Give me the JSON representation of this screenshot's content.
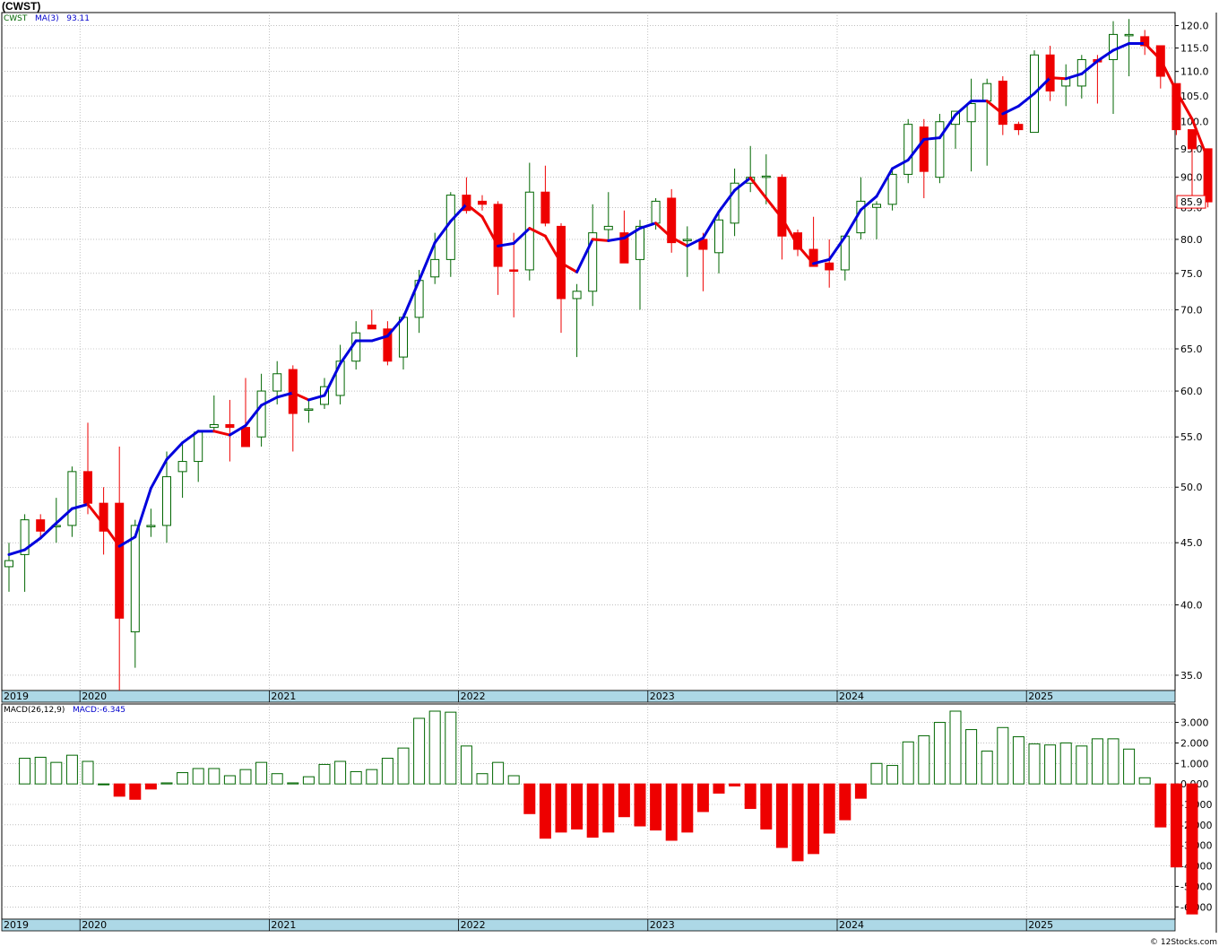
{
  "header": {
    "title": "(CWST)",
    "footer": "© 12Stocks.com"
  },
  "colors": {
    "up": "#006600",
    "down": "#ee0000",
    "ma_rising": "#0000dd",
    "ma_falling": "#ee0000",
    "axis_band": "#add8e6",
    "grid": "#999999",
    "last_box": "#ee0000"
  },
  "chart_data": [
    {
      "type": "candlestick",
      "symbol": "CWST",
      "interval": "monthly",
      "y_scale": "log",
      "ylim": [
        34,
        123
      ],
      "y_ticks": [
        35,
        40,
        45,
        50,
        55,
        60,
        65,
        70,
        75,
        80,
        85,
        90,
        95,
        100,
        105,
        110,
        115,
        120
      ],
      "year_labels": [
        "2019",
        "2020",
        "2021",
        "2022",
        "2023",
        "2024",
        "2025"
      ],
      "last_value": "85.9",
      "legend": {
        "symbol": "CWST",
        "ma_label": "MA(3)",
        "ma_value": "93.11"
      },
      "candles": [
        {
          "date": "2019-08",
          "o": 43.0,
          "h": 45.0,
          "l": 41.0,
          "c": 43.5
        },
        {
          "date": "2019-09",
          "o": 44.0,
          "h": 47.5,
          "l": 41.0,
          "c": 47.0
        },
        {
          "date": "2019-10",
          "o": 47.0,
          "h": 47.5,
          "l": 45.5,
          "c": 46.0
        },
        {
          "date": "2019-11",
          "o": 46.5,
          "h": 49.0,
          "l": 45.0,
          "c": 46.5
        },
        {
          "date": "2019-12",
          "o": 46.5,
          "h": 52.0,
          "l": 45.5,
          "c": 51.5
        },
        {
          "date": "2020-01",
          "o": 51.5,
          "h": 56.5,
          "l": 47.5,
          "c": 48.5
        },
        {
          "date": "2020-02",
          "o": 48.5,
          "h": 50.0,
          "l": 44.0,
          "c": 46.0
        },
        {
          "date": "2020-03",
          "o": 48.5,
          "h": 54.0,
          "l": 34.0,
          "c": 39.0
        },
        {
          "date": "2020-04",
          "o": 38.0,
          "h": 47.0,
          "l": 35.5,
          "c": 46.5
        },
        {
          "date": "2020-05",
          "o": 46.5,
          "h": 48.0,
          "l": 45.5,
          "c": 46.5
        },
        {
          "date": "2020-06",
          "o": 46.5,
          "h": 53.5,
          "l": 45.0,
          "c": 51.0
        },
        {
          "date": "2020-07",
          "o": 51.5,
          "h": 54.5,
          "l": 49.0,
          "c": 52.5
        },
        {
          "date": "2020-08",
          "o": 52.5,
          "h": 55.5,
          "l": 50.5,
          "c": 55.5
        },
        {
          "date": "2020-09",
          "o": 56.0,
          "h": 59.5,
          "l": 55.5,
          "c": 56.3
        },
        {
          "date": "2020-10",
          "o": 56.3,
          "h": 59.0,
          "l": 52.5,
          "c": 56.0
        },
        {
          "date": "2020-11",
          "o": 56.0,
          "h": 61.5,
          "l": 54.0,
          "c": 54.0
        },
        {
          "date": "2020-12",
          "o": 55.0,
          "h": 62.0,
          "l": 54.0,
          "c": 60.0
        },
        {
          "date": "2021-01",
          "o": 60.0,
          "h": 63.5,
          "l": 58.5,
          "c": 62.0
        },
        {
          "date": "2021-02",
          "o": 62.5,
          "h": 63.0,
          "l": 53.5,
          "c": 57.5
        },
        {
          "date": "2021-03",
          "o": 58.0,
          "h": 59.0,
          "l": 56.5,
          "c": 58.0
        },
        {
          "date": "2021-04",
          "o": 58.5,
          "h": 61.5,
          "l": 58.0,
          "c": 60.5
        },
        {
          "date": "2021-05",
          "o": 59.5,
          "h": 65.5,
          "l": 58.5,
          "c": 63.5
        },
        {
          "date": "2021-06",
          "o": 63.5,
          "h": 68.5,
          "l": 62.5,
          "c": 67.0
        },
        {
          "date": "2021-07",
          "o": 68.0,
          "h": 70.0,
          "l": 67.5,
          "c": 67.5
        },
        {
          "date": "2021-08",
          "o": 67.5,
          "h": 68.5,
          "l": 63.0,
          "c": 63.5
        },
        {
          "date": "2021-09",
          "o": 64.0,
          "h": 69.5,
          "l": 62.5,
          "c": 69.0
        },
        {
          "date": "2021-10",
          "o": 69.0,
          "h": 75.5,
          "l": 67.0,
          "c": 74.0
        },
        {
          "date": "2021-11",
          "o": 74.5,
          "h": 81.0,
          "l": 73.5,
          "c": 77.0
        },
        {
          "date": "2021-12",
          "o": 77.0,
          "h": 87.5,
          "l": 74.5,
          "c": 87.0
        },
        {
          "date": "2022-01",
          "o": 87.0,
          "h": 90.0,
          "l": 84.0,
          "c": 84.5
        },
        {
          "date": "2022-02",
          "o": 86.0,
          "h": 87.0,
          "l": 84.5,
          "c": 85.5
        },
        {
          "date": "2022-03",
          "o": 85.5,
          "h": 86.0,
          "l": 72.0,
          "c": 76.0
        },
        {
          "date": "2022-04",
          "o": 75.5,
          "h": 81.0,
          "l": 69.0,
          "c": 75.3
        },
        {
          "date": "2022-05",
          "o": 75.5,
          "h": 92.5,
          "l": 74.0,
          "c": 87.5
        },
        {
          "date": "2022-06",
          "o": 87.5,
          "h": 92.0,
          "l": 82.0,
          "c": 82.5
        },
        {
          "date": "2022-07",
          "o": 82.0,
          "h": 82.5,
          "l": 67.0,
          "c": 71.5
        },
        {
          "date": "2022-08",
          "o": 71.5,
          "h": 73.5,
          "l": 64.0,
          "c": 72.5
        },
        {
          "date": "2022-09",
          "o": 72.5,
          "h": 85.5,
          "l": 70.5,
          "c": 81.0
        },
        {
          "date": "2022-10",
          "o": 81.5,
          "h": 87.5,
          "l": 80.0,
          "c": 82.0
        },
        {
          "date": "2022-11",
          "o": 81.0,
          "h": 84.5,
          "l": 76.5,
          "c": 76.5
        },
        {
          "date": "2022-12",
          "o": 77.0,
          "h": 83.0,
          "l": 70.0,
          "c": 82.0
        },
        {
          "date": "2023-01",
          "o": 82.5,
          "h": 86.5,
          "l": 81.5,
          "c": 86.0
        },
        {
          "date": "2023-02",
          "o": 86.5,
          "h": 88.0,
          "l": 78.0,
          "c": 79.5
        },
        {
          "date": "2023-03",
          "o": 80.0,
          "h": 82.0,
          "l": 74.5,
          "c": 80.0
        },
        {
          "date": "2023-04",
          "o": 80.0,
          "h": 81.0,
          "l": 72.5,
          "c": 78.5
        },
        {
          "date": "2023-05",
          "o": 78.0,
          "h": 84.0,
          "l": 75.0,
          "c": 83.0
        },
        {
          "date": "2023-06",
          "o": 82.5,
          "h": 91.5,
          "l": 80.5,
          "c": 89.0
        },
        {
          "date": "2023-07",
          "o": 89.0,
          "h": 95.5,
          "l": 87.5,
          "c": 90.0
        },
        {
          "date": "2023-08",
          "o": 90.0,
          "h": 94.0,
          "l": 85.5,
          "c": 90.2
        },
        {
          "date": "2023-09",
          "o": 90.0,
          "h": 90.5,
          "l": 77.0,
          "c": 80.5
        },
        {
          "date": "2023-10",
          "o": 81.0,
          "h": 81.5,
          "l": 77.5,
          "c": 78.5
        },
        {
          "date": "2023-11",
          "o": 78.5,
          "h": 83.5,
          "l": 76.0,
          "c": 76.0
        },
        {
          "date": "2023-12",
          "o": 76.5,
          "h": 80.0,
          "l": 73.0,
          "c": 75.5
        },
        {
          "date": "2024-01",
          "o": 75.5,
          "h": 80.5,
          "l": 74.0,
          "c": 80.5
        },
        {
          "date": "2024-02",
          "o": 81.0,
          "h": 90.0,
          "l": 80.0,
          "c": 86.0
        },
        {
          "date": "2024-03",
          "o": 85.0,
          "h": 86.0,
          "l": 80.0,
          "c": 85.5
        },
        {
          "date": "2024-04",
          "o": 85.5,
          "h": 91.5,
          "l": 84.5,
          "c": 90.5
        },
        {
          "date": "2024-05",
          "o": 90.5,
          "h": 100.5,
          "l": 89.0,
          "c": 99.5
        },
        {
          "date": "2024-06",
          "o": 99.0,
          "h": 100.5,
          "l": 86.5,
          "c": 91.0
        },
        {
          "date": "2024-07",
          "o": 90.0,
          "h": 101.5,
          "l": 89.0,
          "c": 100.0
        },
        {
          "date": "2024-08",
          "o": 99.5,
          "h": 102.0,
          "l": 95.0,
          "c": 102.0
        },
        {
          "date": "2024-09",
          "o": 100.0,
          "h": 108.5,
          "l": 91.0,
          "c": 103.5
        },
        {
          "date": "2024-10",
          "o": 104.0,
          "h": 108.5,
          "l": 92.0,
          "c": 107.5
        },
        {
          "date": "2024-11",
          "o": 108.0,
          "h": 109.0,
          "l": 97.5,
          "c": 99.5
        },
        {
          "date": "2024-12",
          "o": 99.5,
          "h": 100.0,
          "l": 97.5,
          "c": 98.5
        },
        {
          "date": "2025-01",
          "o": 98.0,
          "h": 114.5,
          "l": 98.0,
          "c": 113.5
        },
        {
          "date": "2025-02",
          "o": 113.5,
          "h": 115.5,
          "l": 104.0,
          "c": 106.0
        },
        {
          "date": "2025-03",
          "o": 107.0,
          "h": 111.5,
          "l": 103.0,
          "c": 108.5
        },
        {
          "date": "2025-04",
          "o": 107.0,
          "h": 113.5,
          "l": 104.5,
          "c": 112.5
        },
        {
          "date": "2025-05",
          "o": 112.5,
          "h": 113.5,
          "l": 103.5,
          "c": 112.0
        },
        {
          "date": "2025-06",
          "o": 112.5,
          "h": 121.0,
          "l": 101.5,
          "c": 118.0
        },
        {
          "date": "2025-07",
          "o": 118.0,
          "h": 121.5,
          "l": 109.0,
          "c": 118.0
        },
        {
          "date": "2025-08",
          "o": 117.5,
          "h": 119.0,
          "l": 113.5,
          "c": 115.5
        },
        {
          "date": "2025-09",
          "o": 115.5,
          "h": 115.5,
          "l": 106.5,
          "c": 109.0
        },
        {
          "date": "2025-10",
          "o": 107.5,
          "h": 107.5,
          "l": 97.5,
          "c": 98.5
        },
        {
          "date": "2025-11",
          "o": 98.5,
          "h": 98.5,
          "l": 86.0,
          "c": 95.0
        },
        {
          "date": "2025-12",
          "o": 95.0,
          "h": 95.0,
          "l": 85.0,
          "c": 85.9
        }
      ],
      "ma3": [
        44.0,
        44.4,
        45.4,
        46.7,
        48.0,
        48.4,
        46.6,
        44.7,
        45.5,
        49.9,
        52.7,
        54.4,
        55.6,
        55.6,
        55.2,
        56.2,
        58.4,
        59.3,
        59.8,
        59.0,
        59.5,
        63.2,
        66.0,
        66.0,
        66.6,
        69.0,
        74.0,
        79.5,
        82.8,
        85.5,
        83.5,
        79.0,
        79.4,
        81.7,
        80.5,
        76.5,
        75.2,
        80.0,
        79.8,
        80.2,
        81.7,
        82.5,
        80.3,
        79.0,
        80.2,
        84.3,
        87.8,
        89.9,
        86.5,
        83.3,
        79.1,
        76.4,
        77.0,
        80.4,
        84.6,
        86.8,
        91.5,
        93.0,
        96.7,
        97.0,
        101.3,
        104.0,
        104.0,
        101.5,
        103.0,
        105.5,
        108.7,
        108.5,
        109.5,
        112.2,
        114.5,
        116.0,
        116.0,
        112.5,
        106.0,
        100.5,
        93.11
      ],
      "macd_panel": {
        "legend": {
          "label": "MACD(26,12,9)",
          "value_label": "MACD:-6.345"
        },
        "ylim": [
          -6.6,
          3.9
        ],
        "y_ticks": [
          3.0,
          2.0,
          1.0,
          0.0,
          -1.0,
          -2.0,
          -3.0,
          -4.0,
          -5.0,
          -6.0
        ],
        "y_tick_labels": [
          "3.000",
          "2.000",
          "1.000",
          "0.000",
          "-1.000",
          "-2.000",
          "-3.000",
          "-4.000",
          "-5.000",
          "-6.000"
        ],
        "hist": [
          1.25,
          1.3,
          1.05,
          1.4,
          1.1,
          0.0,
          -0.6,
          -0.75,
          -0.25,
          0.05,
          0.55,
          0.75,
          0.75,
          0.4,
          0.7,
          1.05,
          0.5,
          0.05,
          0.35,
          0.95,
          1.1,
          0.6,
          0.7,
          1.25,
          1.75,
          3.2,
          3.55,
          3.5,
          1.85,
          0.5,
          1.05,
          0.4,
          -1.45,
          -2.65,
          -2.35,
          -2.2,
          -2.6,
          -2.35,
          -1.6,
          -2.05,
          -2.25,
          -2.75,
          -2.35,
          -1.35,
          -0.45,
          -0.1,
          -1.2,
          -2.2,
          -3.1,
          -3.75,
          -3.4,
          -2.4,
          -1.75,
          -0.7,
          1.0,
          0.9,
          2.05,
          2.35,
          3.0,
          3.55,
          2.65,
          1.6,
          2.75,
          2.3,
          1.95,
          1.9,
          2.0,
          1.85,
          2.2,
          2.2,
          1.7,
          0.3,
          -2.1,
          -4.05,
          -6.345
        ]
      }
    }
  ]
}
